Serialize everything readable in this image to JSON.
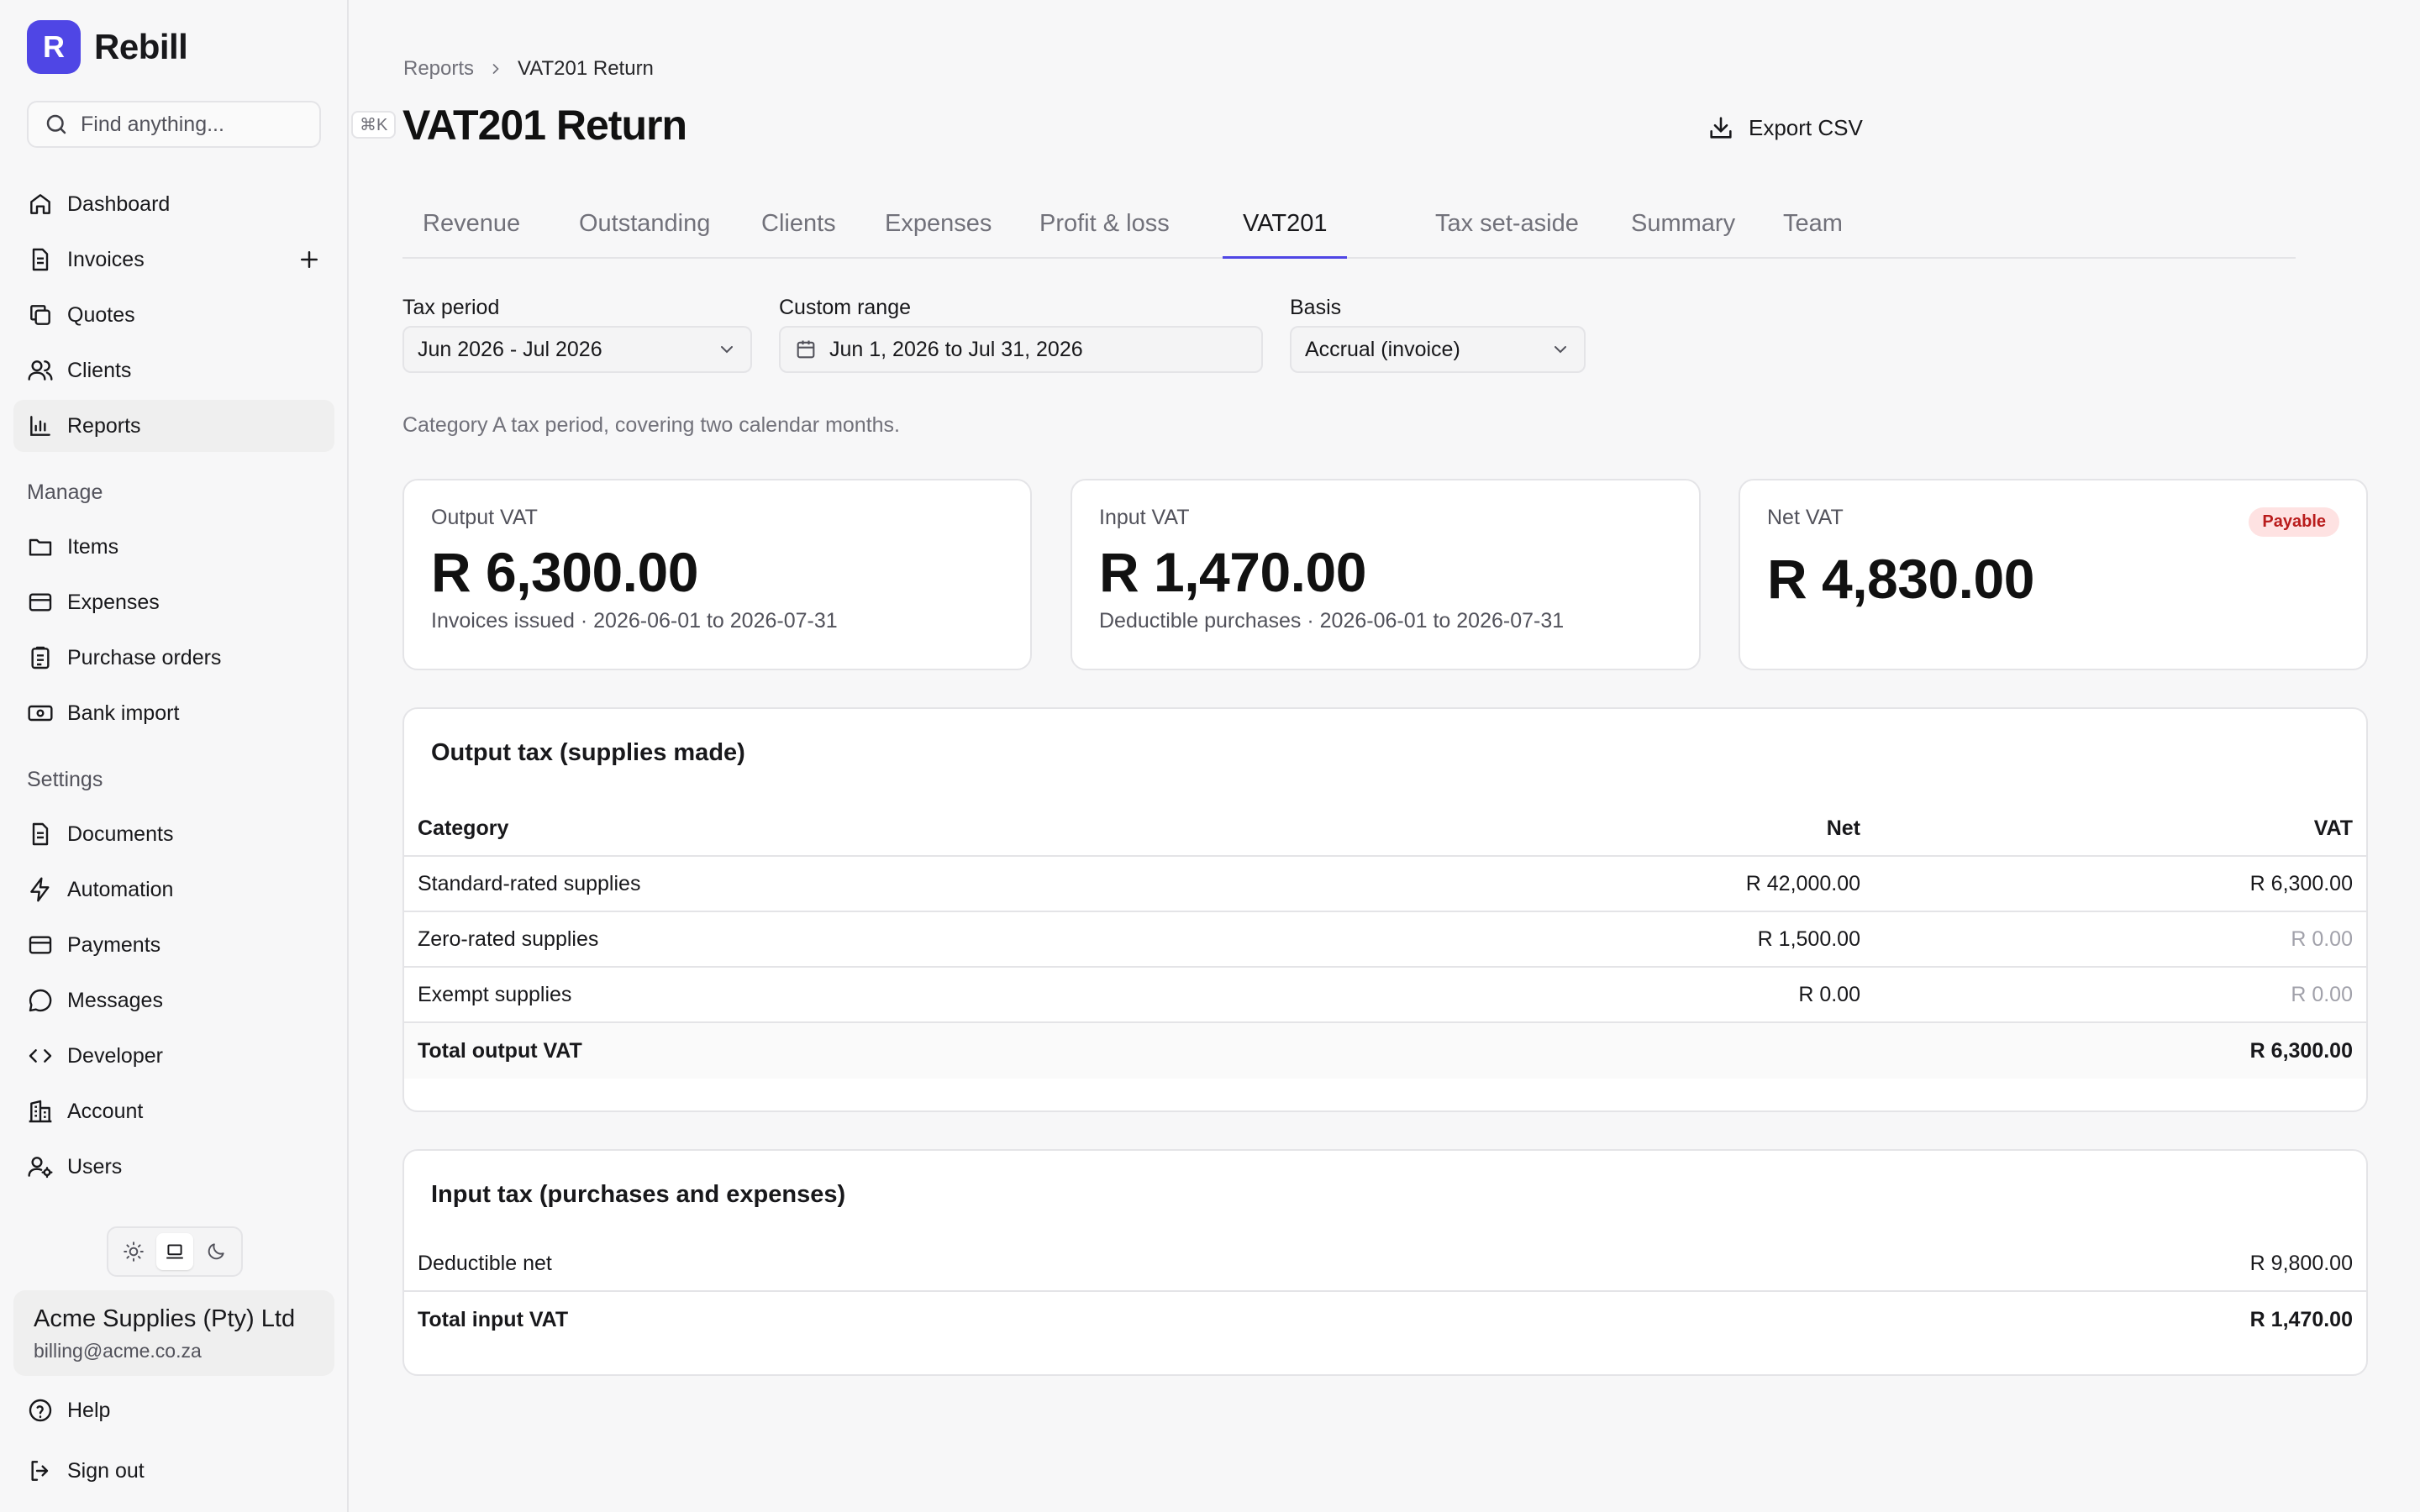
{
  "brand": {
    "logo_letter": "R",
    "name": "Rebill",
    "accent": "#4f46e5"
  },
  "search": {
    "placeholder": "Find anything...",
    "shortcut": "⌘K"
  },
  "nav": {
    "items": [
      {
        "label": "Dashboard",
        "icon": "home-icon"
      },
      {
        "label": "Invoices",
        "icon": "document-icon"
      },
      {
        "label": "Quotes",
        "icon": "copy-icon"
      },
      {
        "label": "Clients",
        "icon": "users-icon"
      },
      {
        "label": "Reports",
        "icon": "chart-icon",
        "active": true
      }
    ],
    "manage_title": "Manage",
    "manage_items": [
      {
        "label": "Items",
        "icon": "folder-icon"
      },
      {
        "label": "Expenses",
        "icon": "card-icon"
      },
      {
        "label": "Purchase orders",
        "icon": "clipboard-icon"
      },
      {
        "label": "Bank import",
        "icon": "banknote-icon"
      }
    ],
    "settings_title": "Settings",
    "settings_items": [
      {
        "label": "Documents",
        "icon": "document-icon"
      },
      {
        "label": "Automation",
        "icon": "bolt-icon"
      },
      {
        "label": "Payments",
        "icon": "card-icon"
      },
      {
        "label": "Messages",
        "icon": "message-icon"
      },
      {
        "label": "Developer",
        "icon": "code-icon"
      },
      {
        "label": "Account",
        "icon": "building-icon"
      },
      {
        "label": "Users",
        "icon": "user-gear-icon"
      }
    ],
    "bottom_items": [
      {
        "label": "Help",
        "icon": "help-icon"
      },
      {
        "label": "Sign out",
        "icon": "signout-icon"
      }
    ]
  },
  "theme": {
    "options": [
      "light",
      "system",
      "dark"
    ],
    "selected": "system"
  },
  "org": {
    "name": "Acme Supplies (Pty) Ltd",
    "email": "billing@acme.co.za"
  },
  "breadcrumb": {
    "parent": "Reports",
    "current": "VAT201 Return"
  },
  "page": {
    "title": "VAT201 Return",
    "export_label": "Export CSV"
  },
  "tabs": [
    {
      "label": "Revenue"
    },
    {
      "label": "Outstanding"
    },
    {
      "label": "Clients"
    },
    {
      "label": "Expenses"
    },
    {
      "label": "Profit & loss"
    },
    {
      "label": "VAT201",
      "active": true
    },
    {
      "label": "Tax set-aside"
    },
    {
      "label": "Summary"
    },
    {
      "label": "Team"
    }
  ],
  "filters": {
    "tax_period": {
      "label": "Tax period",
      "value": "Jun 2026 - Jul 2026"
    },
    "custom_range": {
      "label": "Custom range",
      "value": "Jun 1, 2026 to Jul 31, 2026"
    },
    "basis": {
      "label": "Basis",
      "value": "Accrual (invoice)"
    }
  },
  "helper_text": "Category A tax period, covering two calendar months.",
  "stats": {
    "output": {
      "label": "Output VAT",
      "value": "R 6,300.00",
      "sub": "Invoices issued · 2026-06-01 to 2026-07-31"
    },
    "input": {
      "label": "Input VAT",
      "value": "R 1,470.00",
      "sub": "Deductible purchases · 2026-06-01 to 2026-07-31"
    },
    "net": {
      "label": "Net VAT",
      "value": "R 4,830.00",
      "badge": "Payable",
      "badge_color": "#b91c1c"
    }
  },
  "output_tax": {
    "title": "Output tax (supplies made)",
    "headers": {
      "category": "Category",
      "net": "Net",
      "vat": "VAT"
    },
    "rows": [
      {
        "category": "Standard-rated supplies",
        "net": "R 42,000.00",
        "vat": "R 6,300.00"
      },
      {
        "category": "Zero-rated supplies",
        "net": "R 1,500.00",
        "vat": "R 0.00"
      },
      {
        "category": "Exempt supplies",
        "net": "R 0.00",
        "vat": "R 0.00"
      }
    ],
    "total": {
      "label": "Total output VAT",
      "vat": "R 6,300.00"
    }
  },
  "input_tax": {
    "title": "Input tax (purchases and expenses)",
    "rows": [
      {
        "label": "Deductible net",
        "value": "R 9,800.00"
      }
    ],
    "total": {
      "label": "Total input VAT",
      "value": "R 1,470.00"
    }
  }
}
